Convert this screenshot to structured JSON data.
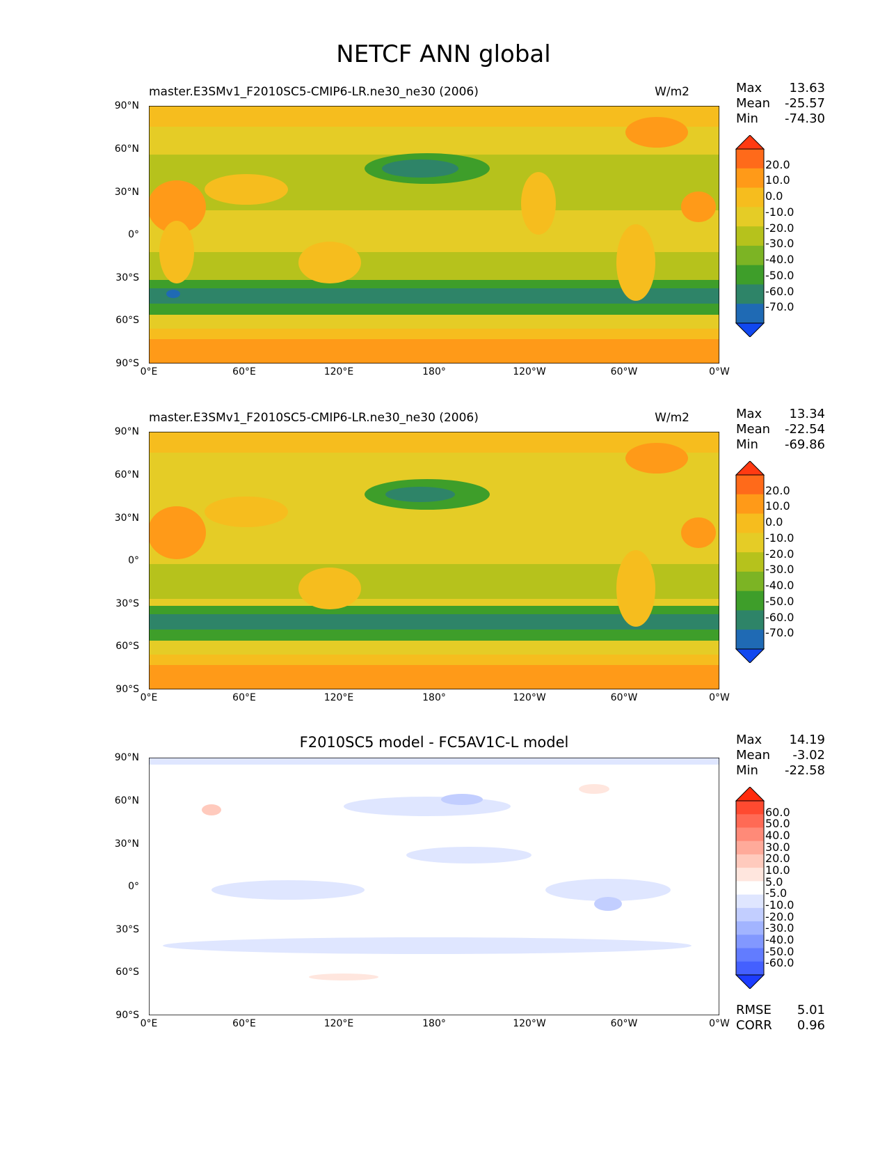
{
  "title": "NETCF ANN global",
  "axes": {
    "lat_ticks": [
      "90°N",
      "60°N",
      "30°N",
      "0°",
      "30°S",
      "60°S",
      "90°S"
    ],
    "lon_ticks": [
      "0°E",
      "60°E",
      "120°E",
      "180°",
      "120°W",
      "60°W",
      "0°W"
    ]
  },
  "panels": [
    {
      "title": "master.E3SMv1_F2010SC5-CMIP6-LR.ne30_ne30 (2006)",
      "units": "W/m2",
      "stats": {
        "max_label": "Max",
        "max": "13.63",
        "mean_label": "Mean",
        "mean": "-25.57",
        "min_label": "Min",
        "min": "-74.30"
      },
      "levels": [
        "20.0",
        "10.0",
        "0.0",
        "-10.0",
        "-20.0",
        "-30.0",
        "-40.0",
        "-50.0",
        "-60.0",
        "-70.0"
      ],
      "colors": [
        "#ff3a12",
        "#ff6a1a",
        "#ff9a18",
        "#f6bd1e",
        "#e5cc26",
        "#b6c21c",
        "#7cb424",
        "#3e9e2a",
        "#2e8468",
        "#1f6ab4",
        "#1148f0"
      ]
    },
    {
      "title": "master.E3SMv1_F2010SC5-CMIP6-LR.ne30_ne30 (2006)",
      "units": "W/m2",
      "stats": {
        "max_label": "Max",
        "max": "13.34",
        "mean_label": "Mean",
        "mean": "-22.54",
        "min_label": "Min",
        "min": "-69.86"
      },
      "levels": [
        "20.0",
        "10.0",
        "0.0",
        "-10.0",
        "-20.0",
        "-30.0",
        "-40.0",
        "-50.0",
        "-60.0",
        "-70.0"
      ],
      "colors": [
        "#ff3a12",
        "#ff6a1a",
        "#ff9a18",
        "#f6bd1e",
        "#e5cc26",
        "#b6c21c",
        "#7cb424",
        "#3e9e2a",
        "#2e8468",
        "#1f6ab4",
        "#1148f0"
      ]
    },
    {
      "title": "F2010SC5 model - FC5AV1C-L model",
      "units": "",
      "stats": {
        "max_label": "Max",
        "max": "14.19",
        "mean_label": "Mean",
        "mean": "-3.02",
        "min_label": "Min",
        "min": "-22.58"
      },
      "levels": [
        "60.0",
        "50.0",
        "40.0",
        "30.0",
        "20.0",
        "10.0",
        "5.0",
        "-5.0",
        "-10.0",
        "-20.0",
        "-30.0",
        "-40.0",
        "-50.0",
        "-60.0"
      ],
      "colors": [
        "#ff2a0c",
        "#ff4a30",
        "#ff6a55",
        "#ff8a78",
        "#ffaa9a",
        "#ffcabd",
        "#ffe6de",
        "#ffffff",
        "#dfe6ff",
        "#c2ceff",
        "#a2b4ff",
        "#8298ff",
        "#627cff",
        "#4460ff",
        "#1c3cff"
      ],
      "footer": {
        "rmse_label": "RMSE",
        "rmse": "5.01",
        "corr_label": "CORR",
        "corr": "0.96"
      }
    }
  ]
}
